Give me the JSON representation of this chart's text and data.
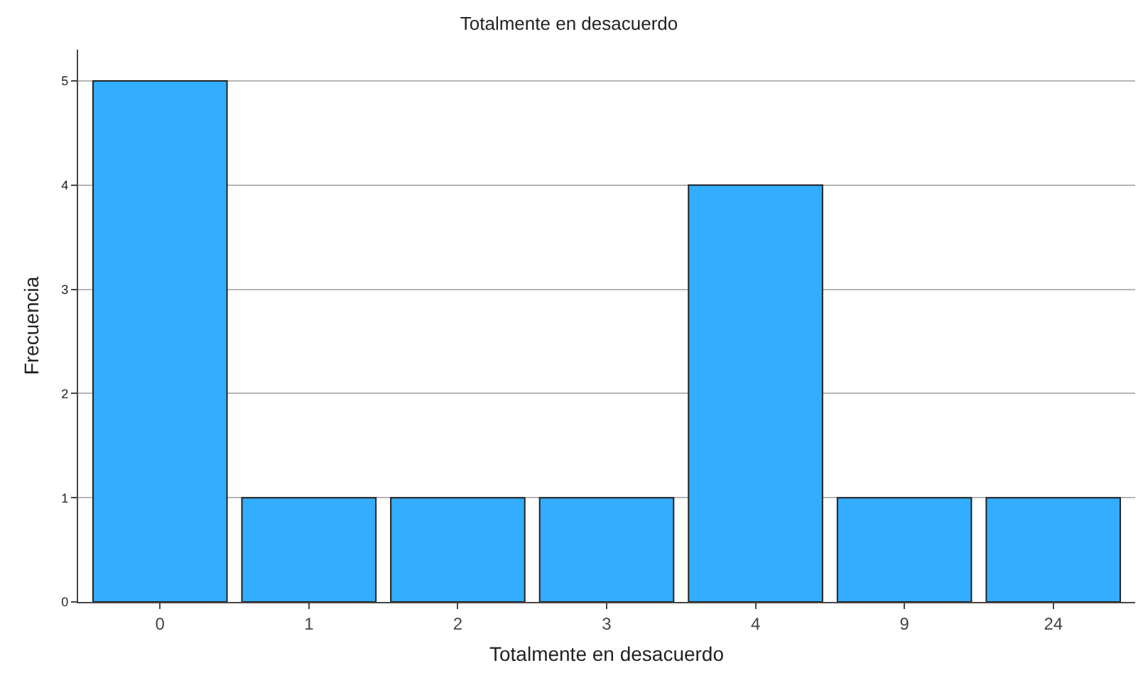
{
  "chart_data": {
    "type": "bar",
    "title": "Totalmente en desacuerdo",
    "xlabel": "Totalmente en desacuerdo",
    "ylabel": "Frecuencia",
    "categories": [
      "0",
      "1",
      "2",
      "3",
      "4",
      "9",
      "24"
    ],
    "values": [
      5,
      1,
      1,
      1,
      4,
      1,
      1
    ],
    "color": "#33adff",
    "ylim": [
      0,
      5.3
    ],
    "yticks": [
      0,
      1,
      2,
      3,
      4,
      5
    ],
    "grid": "y"
  }
}
